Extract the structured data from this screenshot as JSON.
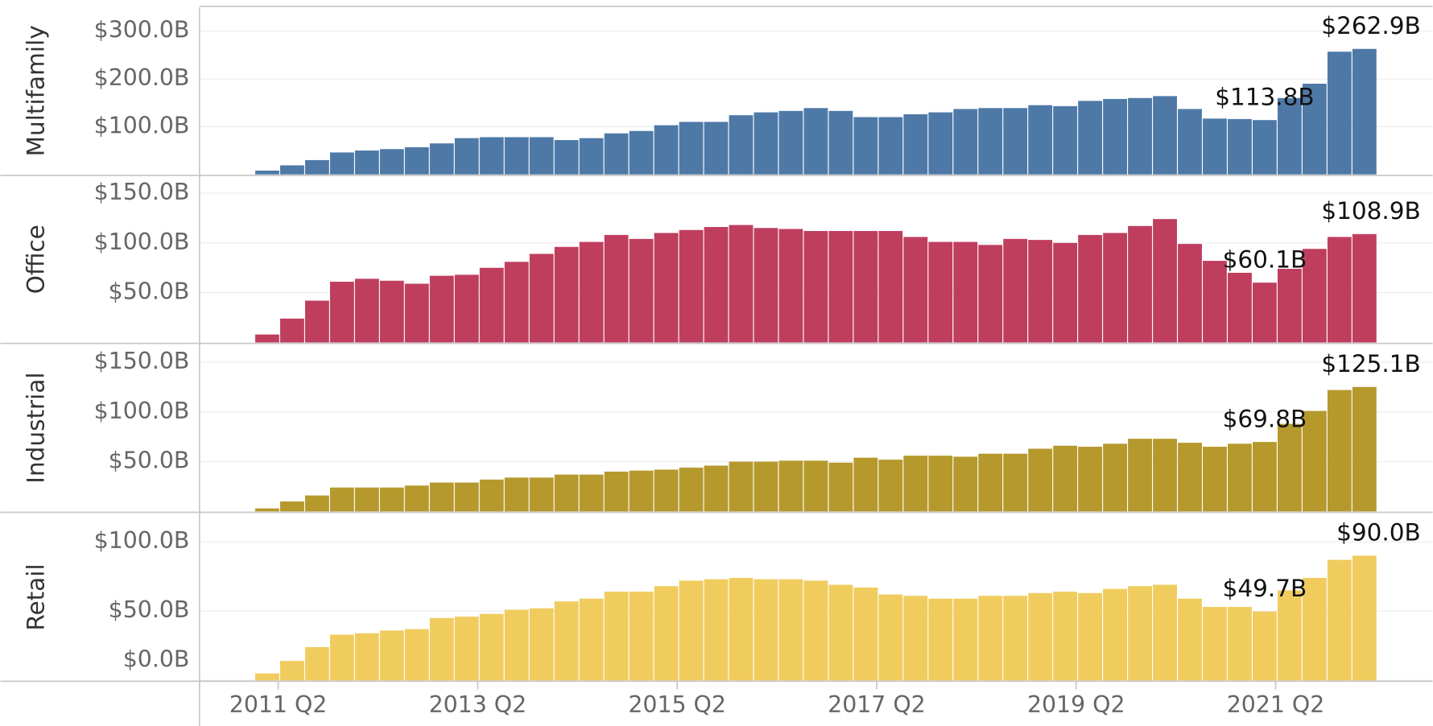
{
  "chart_data": [
    {
      "type": "bar",
      "title": "Multifamily",
      "color": "#4e79a7",
      "grid": true,
      "ylim": [
        0,
        350
      ],
      "yticks": [
        {
          "value": 100,
          "label": "$100.0B"
        },
        {
          "value": 200,
          "label": "$200.0B"
        },
        {
          "value": 300,
          "label": "$300.0B"
        }
      ],
      "values": [
        8,
        19,
        30,
        46,
        50,
        53,
        57,
        65,
        76,
        78,
        78,
        78,
        72,
        76,
        86,
        91,
        103,
        110,
        110,
        124,
        130,
        133,
        139,
        133,
        120,
        120,
        126,
        130,
        137,
        139,
        139,
        145,
        143,
        154,
        158,
        160,
        164,
        137,
        117,
        116,
        113.8,
        160,
        190,
        257,
        262.9
      ],
      "value_labels": [
        null,
        null,
        null,
        null,
        null,
        null,
        null,
        null,
        null,
        null,
        null,
        null,
        null,
        null,
        null,
        null,
        null,
        null,
        null,
        null,
        null,
        null,
        null,
        null,
        null,
        null,
        null,
        null,
        null,
        null,
        null,
        null,
        null,
        null,
        null,
        null,
        null,
        null,
        null,
        null,
        "$113.8B",
        null,
        null,
        null,
        "$262.9B"
      ]
    },
    {
      "type": "bar",
      "title": "Office",
      "color": "#bf3e5e",
      "grid": true,
      "ylim": [
        0,
        167
      ],
      "yticks": [
        {
          "value": 50,
          "label": "$50.0B"
        },
        {
          "value": 100,
          "label": "$100.0B"
        },
        {
          "value": 150,
          "label": "$150.0B"
        }
      ],
      "values": [
        8,
        24,
        42,
        61,
        64,
        62,
        59,
        67,
        68,
        75,
        81,
        89,
        96,
        101,
        108,
        104,
        110,
        113,
        116,
        118,
        115,
        114,
        112,
        112,
        112,
        112,
        106,
        101,
        101,
        98,
        104,
        103,
        100,
        108,
        110,
        117,
        124,
        99,
        82,
        70,
        60.1,
        74,
        94,
        106,
        108.9
      ],
      "value_labels": [
        null,
        null,
        null,
        null,
        null,
        null,
        null,
        null,
        null,
        null,
        null,
        null,
        null,
        null,
        null,
        null,
        null,
        null,
        null,
        null,
        null,
        null,
        null,
        null,
        null,
        null,
        null,
        null,
        null,
        null,
        null,
        null,
        null,
        null,
        null,
        null,
        null,
        null,
        null,
        null,
        "$60.1B",
        null,
        null,
        null,
        "$108.9B"
      ]
    },
    {
      "type": "bar",
      "title": "Industrial",
      "color": "#b5992d",
      "grid": true,
      "ylim": [
        0,
        168
      ],
      "yticks": [
        {
          "value": 50,
          "label": "$50.0B"
        },
        {
          "value": 100,
          "label": "$100.0B"
        },
        {
          "value": 150,
          "label": "$150.0B"
        }
      ],
      "values": [
        3,
        10,
        16,
        24,
        24,
        24,
        26,
        29,
        29,
        32,
        34,
        34,
        37,
        37,
        40,
        41,
        42,
        44,
        46,
        50,
        50,
        51,
        51,
        49,
        54,
        52,
        56,
        56,
        55,
        58,
        58,
        63,
        66,
        65,
        68,
        73,
        73,
        69,
        65,
        68,
        69.8,
        88,
        101,
        122,
        125.1
      ],
      "value_labels": [
        null,
        null,
        null,
        null,
        null,
        null,
        null,
        null,
        null,
        null,
        null,
        null,
        null,
        null,
        null,
        null,
        null,
        null,
        null,
        null,
        null,
        null,
        null,
        null,
        null,
        null,
        null,
        null,
        null,
        null,
        null,
        null,
        null,
        null,
        null,
        null,
        null,
        null,
        null,
        null,
        "$69.8B",
        null,
        null,
        null,
        "$125.1B"
      ]
    },
    {
      "type": "bar",
      "title": "Retail",
      "color": "#f0cc5f",
      "grid": true,
      "ylim": [
        0,
        120
      ],
      "yticks": [
        {
          "value": 0,
          "label": "$0.0B"
        },
        {
          "value": 50,
          "label": "$50.0B"
        },
        {
          "value": 100,
          "label": "$100.0B"
        }
      ],
      "values": [
        5,
        14,
        24,
        33,
        34,
        36,
        37,
        45,
        46,
        48,
        51,
        52,
        57,
        59,
        64,
        64,
        68,
        72,
        73,
        74,
        73,
        73,
        72,
        69,
        67,
        62,
        61,
        59,
        59,
        61,
        61,
        63,
        64,
        63,
        66,
        68,
        69,
        59,
        53,
        53,
        49.7,
        65,
        74,
        87,
        90.0
      ],
      "value_labels": [
        null,
        null,
        null,
        null,
        null,
        null,
        null,
        null,
        null,
        null,
        null,
        null,
        null,
        null,
        null,
        null,
        null,
        null,
        null,
        null,
        null,
        null,
        null,
        null,
        null,
        null,
        null,
        null,
        null,
        null,
        null,
        null,
        null,
        null,
        null,
        null,
        null,
        null,
        null,
        null,
        "$49.7B",
        null,
        null,
        null,
        "$90.0B"
      ],
      "categories": [
        "2011 Q2",
        null,
        null,
        null,
        null,
        null,
        null,
        null,
        "2013 Q2",
        null,
        null,
        null,
        null,
        null,
        null,
        null,
        "2015 Q2",
        null,
        null,
        null,
        null,
        null,
        null,
        null,
        "2017 Q2",
        null,
        null,
        null,
        null,
        null,
        null,
        null,
        "2019 Q2",
        null,
        null,
        null,
        null,
        null,
        null,
        null,
        "2021 Q2",
        null,
        null,
        null,
        null
      ]
    }
  ]
}
